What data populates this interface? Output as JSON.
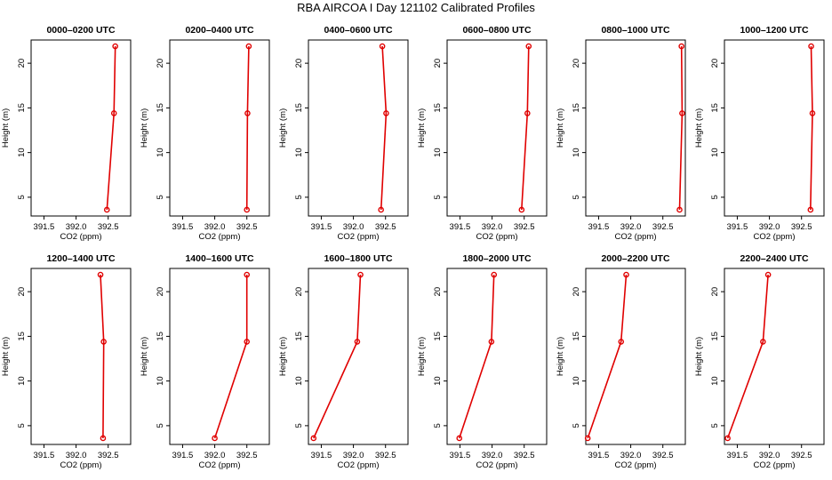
{
  "figure": {
    "title": "RBA AIRCOA I  Day 121102  Calibrated Profiles"
  },
  "style": {
    "line_color": "#e00000",
    "axis_color": "#000000"
  },
  "chart_data": [
    {
      "type": "line",
      "title": "0000–0200 UTC",
      "xlabel": "CO2 (ppm)",
      "ylabel": "Height (m)",
      "xlim": [
        391.3,
        392.85
      ],
      "ylim": [
        2.9,
        22.6
      ],
      "xticks": [
        "391.5",
        "392.0",
        "392.5"
      ],
      "yticks": [
        "5",
        "10",
        "15",
        "20"
      ],
      "grid": false,
      "series": [
        {
          "x": [
            392.48,
            392.59,
            392.61
          ],
          "y": [
            3.6,
            14.4,
            21.9
          ]
        }
      ]
    },
    {
      "type": "line",
      "title": "0200–0400 UTC",
      "xlabel": "CO2 (ppm)",
      "ylabel": "Height (m)",
      "xlim": [
        391.3,
        392.85
      ],
      "ylim": [
        2.9,
        22.6
      ],
      "xticks": [
        "391.5",
        "392.0",
        "392.5"
      ],
      "yticks": [
        "5",
        "10",
        "15",
        "20"
      ],
      "grid": false,
      "series": [
        {
          "x": [
            392.5,
            392.51,
            392.53
          ],
          "y": [
            3.6,
            14.4,
            21.9
          ]
        }
      ]
    },
    {
      "type": "line",
      "title": "0400–0600 UTC",
      "xlabel": "CO2 (ppm)",
      "ylabel": "Height (m)",
      "xlim": [
        391.3,
        392.85
      ],
      "ylim": [
        2.9,
        22.6
      ],
      "xticks": [
        "391.5",
        "392.0",
        "392.5"
      ],
      "yticks": [
        "5",
        "10",
        "15",
        "20"
      ],
      "grid": false,
      "series": [
        {
          "x": [
            392.43,
            392.51,
            392.45
          ],
          "y": [
            3.6,
            14.4,
            21.9
          ]
        }
      ]
    },
    {
      "type": "line",
      "title": "0600–0800 UTC",
      "xlabel": "CO2 (ppm)",
      "ylabel": "Height (m)",
      "xlim": [
        391.3,
        392.85
      ],
      "ylim": [
        2.9,
        22.6
      ],
      "xticks": [
        "391.5",
        "392.0",
        "392.5"
      ],
      "yticks": [
        "5",
        "10",
        "15",
        "20"
      ],
      "grid": false,
      "series": [
        {
          "x": [
            392.46,
            392.55,
            392.57
          ],
          "y": [
            3.6,
            14.4,
            21.9
          ]
        }
      ]
    },
    {
      "type": "line",
      "title": "0800–1000 UTC",
      "xlabel": "CO2 (ppm)",
      "ylabel": "Height (m)",
      "xlim": [
        391.3,
        392.85
      ],
      "ylim": [
        2.9,
        22.6
      ],
      "xticks": [
        "391.5",
        "392.0",
        "392.5"
      ],
      "yticks": [
        "5",
        "10",
        "15",
        "20"
      ],
      "grid": false,
      "series": [
        {
          "x": [
            392.76,
            392.8,
            392.79
          ],
          "y": [
            3.6,
            14.4,
            21.9
          ]
        }
      ]
    },
    {
      "type": "line",
      "title": "1000–1200 UTC",
      "xlabel": "CO2 (ppm)",
      "ylabel": "Height (m)",
      "xlim": [
        391.3,
        392.85
      ],
      "ylim": [
        2.9,
        22.6
      ],
      "xticks": [
        "391.5",
        "392.0",
        "392.5"
      ],
      "yticks": [
        "5",
        "10",
        "15",
        "20"
      ],
      "grid": false,
      "series": [
        {
          "x": [
            392.64,
            392.67,
            392.65
          ],
          "y": [
            3.6,
            14.4,
            21.9
          ]
        }
      ]
    },
    {
      "type": "line",
      "title": "1200–1400 UTC",
      "xlabel": "CO2 (ppm)",
      "ylabel": "Height (m)",
      "xlim": [
        391.3,
        392.85
      ],
      "ylim": [
        2.9,
        22.6
      ],
      "xticks": [
        "391.5",
        "392.0",
        "392.5"
      ],
      "yticks": [
        "5",
        "10",
        "15",
        "20"
      ],
      "grid": false,
      "series": [
        {
          "x": [
            392.42,
            392.43,
            392.38
          ],
          "y": [
            3.6,
            14.4,
            21.9
          ]
        }
      ]
    },
    {
      "type": "line",
      "title": "1400–1600 UTC",
      "xlabel": "CO2 (ppm)",
      "ylabel": "Height (m)",
      "xlim": [
        391.3,
        392.85
      ],
      "ylim": [
        2.9,
        22.6
      ],
      "xticks": [
        "391.5",
        "392.0",
        "392.5"
      ],
      "yticks": [
        "5",
        "10",
        "15",
        "20"
      ],
      "grid": false,
      "series": [
        {
          "x": [
            392.0,
            392.5,
            392.5
          ],
          "y": [
            3.6,
            14.4,
            21.9
          ]
        }
      ]
    },
    {
      "type": "line",
      "title": "1600–1800 UTC",
      "xlabel": "CO2 (ppm)",
      "ylabel": "Height (m)",
      "xlim": [
        391.3,
        392.85
      ],
      "ylim": [
        2.9,
        22.6
      ],
      "xticks": [
        "391.5",
        "392.0",
        "392.5"
      ],
      "yticks": [
        "5",
        "10",
        "15",
        "20"
      ],
      "grid": false,
      "series": [
        {
          "x": [
            391.38,
            392.06,
            392.11
          ],
          "y": [
            3.6,
            14.4,
            21.9
          ]
        }
      ]
    },
    {
      "type": "line",
      "title": "1800–2000 UTC",
      "xlabel": "CO2 (ppm)",
      "ylabel": "Height (m)",
      "xlim": [
        391.3,
        392.85
      ],
      "ylim": [
        2.9,
        22.6
      ],
      "xticks": [
        "391.5",
        "392.0",
        "392.5"
      ],
      "yticks": [
        "5",
        "10",
        "15",
        "20"
      ],
      "grid": false,
      "series": [
        {
          "x": [
            391.49,
            391.99,
            392.03
          ],
          "y": [
            3.6,
            14.4,
            21.9
          ]
        }
      ]
    },
    {
      "type": "line",
      "title": "2000–2200 UTC",
      "xlabel": "CO2 (ppm)",
      "ylabel": "Height (m)",
      "xlim": [
        391.3,
        392.85
      ],
      "ylim": [
        2.9,
        22.6
      ],
      "xticks": [
        "391.5",
        "392.0",
        "392.5"
      ],
      "yticks": [
        "5",
        "10",
        "15",
        "20"
      ],
      "grid": false,
      "series": [
        {
          "x": [
            391.33,
            391.85,
            391.93
          ],
          "y": [
            3.6,
            14.4,
            21.9
          ]
        }
      ]
    },
    {
      "type": "line",
      "title": "2200–2400 UTC",
      "xlabel": "CO2 (ppm)",
      "ylabel": "Height (m)",
      "xlim": [
        391.3,
        392.85
      ],
      "ylim": [
        2.9,
        22.6
      ],
      "xticks": [
        "391.5",
        "392.0",
        "392.5"
      ],
      "yticks": [
        "5",
        "10",
        "15",
        "20"
      ],
      "grid": false,
      "series": [
        {
          "x": [
            391.35,
            391.9,
            391.98
          ],
          "y": [
            3.6,
            14.4,
            21.9
          ]
        }
      ]
    }
  ]
}
